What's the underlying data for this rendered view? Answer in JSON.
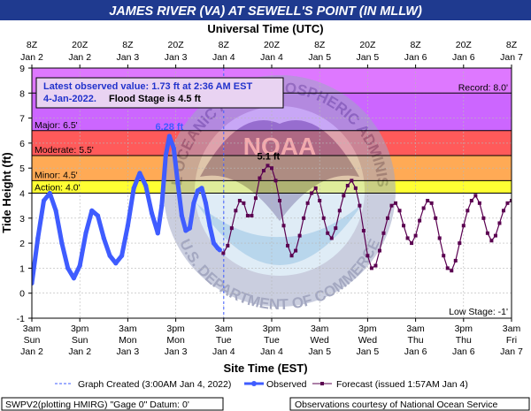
{
  "chart_data": {
    "type": "line",
    "title": "JAMES RIVER (VA) AT SEWELL'S POINT (IN MLLW)",
    "top_axis_title": "Universal Time (UTC)",
    "top_ticks": [
      {
        "hour": 0,
        "line1": "8Z",
        "line2": "Jan 2"
      },
      {
        "hour": 12,
        "line1": "20Z",
        "line2": "Jan 2"
      },
      {
        "hour": 24,
        "line1": "8Z",
        "line2": "Jan 3"
      },
      {
        "hour": 36,
        "line1": "20Z",
        "line2": "Jan 3"
      },
      {
        "hour": 48,
        "line1": "8Z",
        "line2": "Jan 4"
      },
      {
        "hour": 60,
        "line1": "20Z",
        "line2": "Jan 4"
      },
      {
        "hour": 72,
        "line1": "8Z",
        "line2": "Jan 5"
      },
      {
        "hour": 84,
        "line1": "20Z",
        "line2": "Jan 5"
      },
      {
        "hour": 96,
        "line1": "8Z",
        "line2": "Jan 6"
      },
      {
        "hour": 108,
        "line1": "20Z",
        "line2": "Jan 6"
      },
      {
        "hour": 120,
        "line1": "8Z",
        "line2": "Jan 7"
      }
    ],
    "bottom_axis_title": "Site Time (EST)",
    "bottom_ticks": [
      {
        "hour": 0,
        "line1": "3am",
        "line2": "Sun",
        "line3": "Jan 2"
      },
      {
        "hour": 12,
        "line1": "3pm",
        "line2": "Sun",
        "line3": "Jan 2"
      },
      {
        "hour": 24,
        "line1": "3am",
        "line2": "Mon",
        "line3": "Jan 3"
      },
      {
        "hour": 36,
        "line1": "3pm",
        "line2": "Mon",
        "line3": "Jan 3"
      },
      {
        "hour": 48,
        "line1": "3am",
        "line2": "Tue",
        "line3": "Jan 4"
      },
      {
        "hour": 60,
        "line1": "3pm",
        "line2": "Tue",
        "line3": "Jan 4"
      },
      {
        "hour": 72,
        "line1": "3am",
        "line2": "Wed",
        "line3": "Jan 5"
      },
      {
        "hour": 84,
        "line1": "3pm",
        "line2": "Wed",
        "line3": "Jan 5"
      },
      {
        "hour": 96,
        "line1": "3am",
        "line2": "Thu",
        "line3": "Jan 6"
      },
      {
        "hour": 108,
        "line1": "3pm",
        "line2": "Thu",
        "line3": "Jan 6"
      },
      {
        "hour": 120,
        "line1": "3am",
        "line2": "Fri",
        "line3": "Jan 7"
      }
    ],
    "ylabel": "Tide Height (ft)",
    "ylim": [
      -1,
      9
    ],
    "xlim_hours": [
      0,
      120
    ],
    "y_ticks": [
      -1,
      0,
      1,
      2,
      3,
      4,
      5,
      6,
      7,
      8,
      9
    ],
    "grid": true,
    "zones": [
      {
        "name": "Record",
        "from": 8.0,
        "to": 9.0,
        "color": "#de78ff",
        "label": "Record: 8.0'"
      },
      {
        "name": "Major",
        "from": 6.5,
        "to": 8.0,
        "color": "#cc66ff",
        "label": "Major: 6.5'"
      },
      {
        "name": "Moderate",
        "from": 5.5,
        "to": 6.5,
        "color": "#ff5a5a",
        "label": "Moderate: 5.5'"
      },
      {
        "name": "Minor",
        "from": 4.5,
        "to": 5.5,
        "color": "#ffaa55",
        "label": "Minor: 4.5'"
      },
      {
        "name": "Action",
        "from": 4.0,
        "to": 4.5,
        "color": "#ffff33",
        "label": "Action: 4.0'"
      }
    ],
    "low_stage_label": "Low Stage: -1'",
    "info_box": {
      "line1": "Latest observed value: 1.73 ft at 2:36 AM EST",
      "line2_date": "4-Jan-2022.",
      "line2_flood": "Flood Stage is 4.5 ft"
    },
    "peak_labels": [
      {
        "text": "6.28 ft",
        "x": 34.4,
        "y": 6.28,
        "series": "Observed"
      },
      {
        "text": "5.1 ft",
        "x": 59.2,
        "y": 5.1,
        "series": "Forecast"
      }
    ],
    "created_marker_hour": 48,
    "series": [
      {
        "name": "Observed",
        "color": "#3f5cff",
        "points": [
          [
            0,
            0.4
          ],
          [
            1.5,
            2.2
          ],
          [
            3.0,
            3.7
          ],
          [
            4.5,
            4.0
          ],
          [
            6.0,
            3.3
          ],
          [
            7.5,
            2.0
          ],
          [
            9.0,
            1.0
          ],
          [
            10.5,
            0.6
          ],
          [
            12.0,
            1.1
          ],
          [
            13.5,
            2.4
          ],
          [
            15.0,
            3.3
          ],
          [
            16.5,
            3.1
          ],
          [
            18.0,
            2.2
          ],
          [
            19.5,
            1.5
          ],
          [
            21.0,
            1.2
          ],
          [
            22.5,
            1.5
          ],
          [
            24.0,
            2.7
          ],
          [
            25.5,
            4.2
          ],
          [
            27.0,
            4.8
          ],
          [
            28.5,
            4.3
          ],
          [
            30.0,
            3.2
          ],
          [
            31.5,
            2.4
          ],
          [
            32.5,
            3.5
          ],
          [
            33.5,
            5.5
          ],
          [
            34.4,
            6.28
          ],
          [
            35.5,
            5.8
          ],
          [
            36.5,
            4.4
          ],
          [
            37.5,
            3.1
          ],
          [
            38.5,
            2.5
          ],
          [
            39.5,
            2.6
          ],
          [
            40.5,
            3.6
          ],
          [
            41.5,
            4.1
          ],
          [
            42.5,
            4.2
          ],
          [
            43.5,
            3.6
          ],
          [
            44.5,
            2.7
          ],
          [
            45.5,
            2.0
          ],
          [
            46.5,
            1.8
          ],
          [
            47.0,
            1.73
          ]
        ]
      },
      {
        "name": "Forecast",
        "color": "#5a0050",
        "points": [
          [
            47.9,
            1.6
          ],
          [
            49.0,
            1.9
          ],
          [
            50.0,
            2.6
          ],
          [
            51.0,
            3.3
          ],
          [
            52.0,
            3.7
          ],
          [
            53.0,
            3.6
          ],
          [
            54.0,
            3.1
          ],
          [
            55.0,
            3.1
          ],
          [
            56.0,
            3.8
          ],
          [
            57.0,
            4.6
          ],
          [
            58.0,
            4.9
          ],
          [
            59.0,
            5.1
          ],
          [
            60.0,
            5.0
          ],
          [
            61.0,
            4.5
          ],
          [
            62.0,
            3.7
          ],
          [
            63.0,
            2.7
          ],
          [
            64.0,
            1.9
          ],
          [
            65.0,
            1.5
          ],
          [
            66.0,
            1.7
          ],
          [
            67.0,
            2.3
          ],
          [
            68.0,
            3.0
          ],
          [
            69.0,
            3.6
          ],
          [
            70.0,
            4.0
          ],
          [
            71.0,
            4.2
          ],
          [
            72.0,
            3.7
          ],
          [
            73.0,
            3.0
          ],
          [
            74.0,
            2.4
          ],
          [
            75.0,
            2.2
          ],
          [
            76.0,
            2.6
          ],
          [
            77.0,
            3.3
          ],
          [
            78.0,
            3.9
          ],
          [
            79.0,
            4.3
          ],
          [
            80.0,
            4.5
          ],
          [
            81.0,
            4.2
          ],
          [
            82.0,
            3.5
          ],
          [
            83.0,
            2.5
          ],
          [
            84.0,
            1.5
          ],
          [
            85.0,
            1.0
          ],
          [
            86.0,
            1.1
          ],
          [
            87.0,
            1.7
          ],
          [
            88.0,
            2.4
          ],
          [
            89.0,
            3.0
          ],
          [
            90.0,
            3.5
          ],
          [
            91.0,
            3.6
          ],
          [
            92.0,
            3.3
          ],
          [
            93.0,
            2.7
          ],
          [
            94.0,
            2.2
          ],
          [
            95.0,
            2.0
          ],
          [
            96.0,
            2.3
          ],
          [
            97.0,
            2.9
          ],
          [
            98.0,
            3.4
          ],
          [
            99.0,
            3.7
          ],
          [
            100.0,
            3.6
          ],
          [
            101.0,
            3.0
          ],
          [
            102.0,
            2.2
          ],
          [
            103.0,
            1.5
          ],
          [
            104.0,
            1.0
          ],
          [
            105.0,
            0.9
          ],
          [
            106.0,
            1.3
          ],
          [
            107.0,
            2.0
          ],
          [
            108.0,
            2.7
          ],
          [
            109.0,
            3.3
          ],
          [
            110.0,
            3.7
          ],
          [
            111.0,
            3.9
          ],
          [
            112.0,
            3.6
          ],
          [
            113.0,
            3.0
          ],
          [
            114.0,
            2.4
          ],
          [
            115.0,
            2.1
          ],
          [
            116.0,
            2.3
          ],
          [
            117.0,
            2.8
          ],
          [
            118.0,
            3.3
          ],
          [
            119.0,
            3.6
          ],
          [
            120.0,
            3.7
          ]
        ]
      }
    ],
    "legend": {
      "graph_created": "Graph Created (3:00AM Jan 4, 2022)",
      "observed": "Observed",
      "forecast": "Forecast (issued 1:57AM Jan 4)"
    },
    "footer": {
      "left": "SWPV2(plotting HMIRG) \"Gage 0\" Datum:  0'",
      "right": "Observations courtesy of National Ocean Service"
    },
    "watermark": {
      "outer_text_top": "NATIONAL OCEANIC AND ATMOSPHERIC ADMINISTRATION",
      "outer_text_bottom": "U.S. DEPARTMENT OF COMMERCE",
      "center_text": "NOAA"
    },
    "colors": {
      "title_bar": "#1f3a8f",
      "observed": "#3f5cff",
      "forecast": "#5a0050",
      "created_line": "#3f5cff"
    }
  }
}
